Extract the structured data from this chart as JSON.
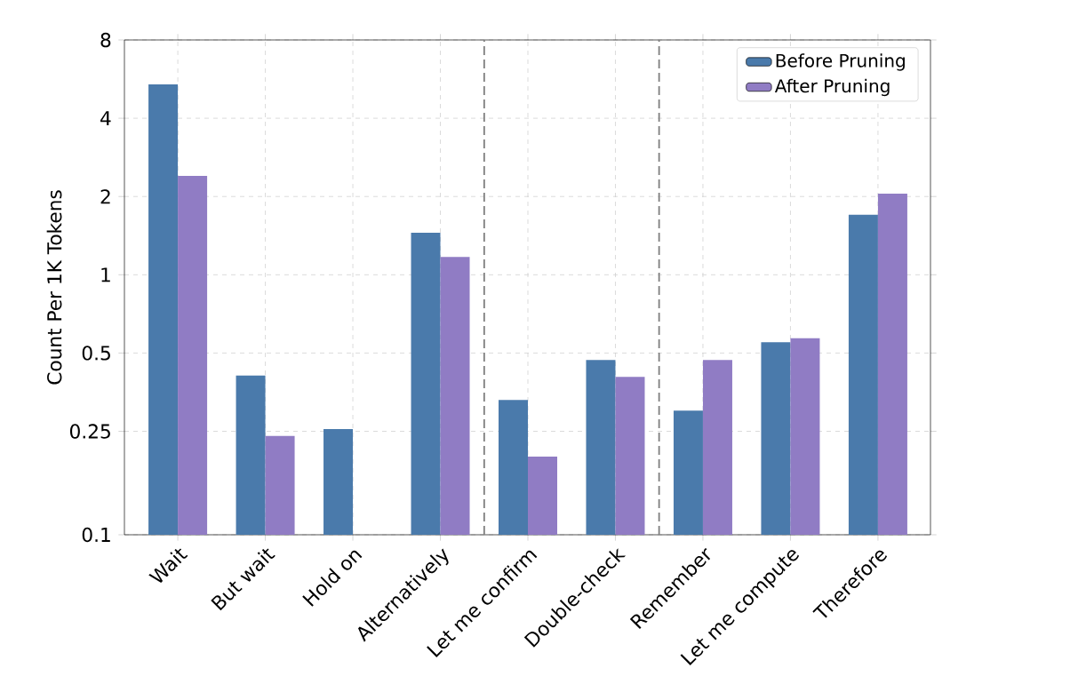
{
  "chart_data": {
    "type": "bar",
    "ylabel": "Count Per 1K Tokens",
    "categories": [
      "Wait",
      "But wait",
      "Hold on",
      "Alternatively",
      "Let me confirm",
      "Double-check",
      "Remember",
      "Let me compute",
      "Therefore"
    ],
    "series": [
      {
        "name": "Before Pruning",
        "color": "#4a7aab",
        "values": [
          5.4,
          0.41,
          0.255,
          1.45,
          0.33,
          0.47,
          0.3,
          0.55,
          1.7
        ]
      },
      {
        "name": "After Pruning",
        "color": "#907cc4",
        "values": [
          2.4,
          0.24,
          null,
          1.17,
          0.2,
          0.405,
          0.47,
          0.57,
          2.05
        ]
      }
    ],
    "log": "y",
    "ylim": [
      0.1,
      8
    ],
    "yticks": [
      0.1,
      0.25,
      0.5,
      1,
      2,
      4,
      8
    ],
    "grid": true,
    "legend": "top right"
  }
}
